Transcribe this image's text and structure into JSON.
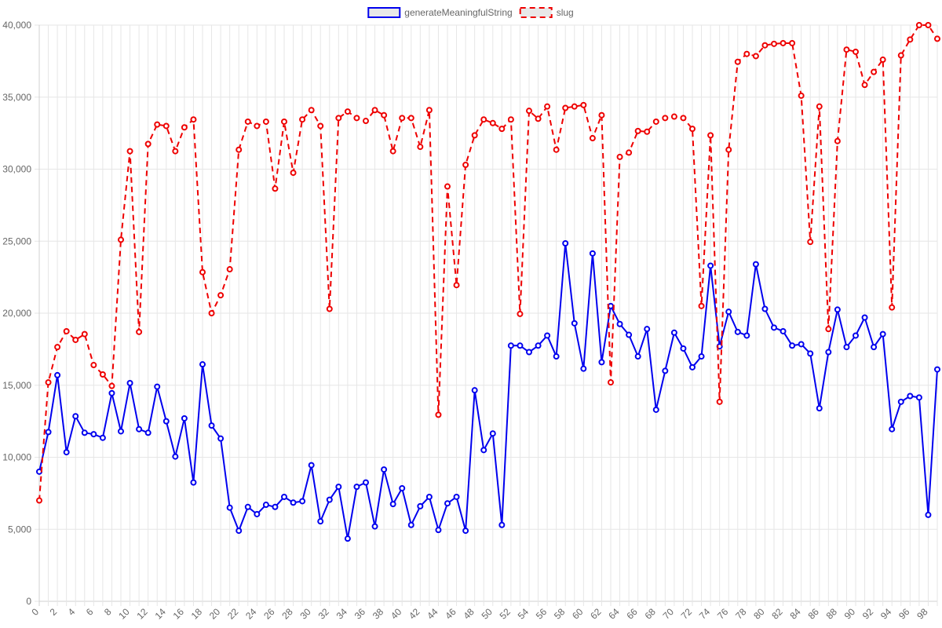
{
  "chart_data": {
    "type": "line",
    "title": "",
    "xlabel": "",
    "ylabel": "",
    "ylim": [
      0,
      40000
    ],
    "y_tick_labels": [
      "0",
      "5,000",
      "10,000",
      "15,000",
      "20,000",
      "25,000",
      "30,000",
      "35,000",
      "40,000"
    ],
    "y_ticks": [
      0,
      5000,
      10000,
      15000,
      20000,
      25000,
      30000,
      35000,
      40000
    ],
    "x": [
      0,
      1,
      2,
      3,
      4,
      5,
      6,
      7,
      8,
      9,
      10,
      11,
      12,
      13,
      14,
      15,
      16,
      17,
      18,
      19,
      20,
      21,
      22,
      23,
      24,
      25,
      26,
      27,
      28,
      29,
      30,
      31,
      32,
      33,
      34,
      35,
      36,
      37,
      38,
      39,
      40,
      41,
      42,
      43,
      44,
      45,
      46,
      47,
      48,
      49,
      50,
      51,
      52,
      53,
      54,
      55,
      56,
      57,
      58,
      59,
      60,
      61,
      62,
      63,
      64,
      65,
      66,
      67,
      68,
      69,
      70,
      71,
      72,
      73,
      74,
      75,
      76,
      77,
      78,
      79,
      80,
      81,
      82,
      83,
      84,
      85,
      86,
      87,
      88,
      89,
      90,
      91,
      92,
      93,
      94,
      95,
      96,
      97,
      98,
      99
    ],
    "x_tick_labels": [
      "0",
      "2",
      "4",
      "6",
      "8",
      "10",
      "12",
      "14",
      "16",
      "18",
      "20",
      "22",
      "24",
      "26",
      "28",
      "30",
      "32",
      "34",
      "36",
      "38",
      "40",
      "42",
      "44",
      "46",
      "48",
      "50",
      "52",
      "54",
      "56",
      "58",
      "60",
      "62",
      "64",
      "66",
      "68",
      "70",
      "72",
      "74",
      "76",
      "78",
      "80",
      "82",
      "84",
      "86",
      "88",
      "90",
      "92",
      "94",
      "96",
      "98"
    ],
    "grid": true,
    "legend_position": "top-center",
    "series": [
      {
        "name": "generateMeaningfulString",
        "color": "#0000ee",
        "line_style": "solid",
        "values": [
          9000,
          11750,
          15700,
          10350,
          12850,
          11700,
          11600,
          11350,
          14450,
          11800,
          15150,
          11950,
          11700,
          14900,
          12500,
          10050,
          12700,
          8250,
          16450,
          12200,
          11300,
          6500,
          4900,
          6550,
          6050,
          6700,
          6550,
          7250,
          6850,
          6950,
          9450,
          5550,
          7050,
          7950,
          4350,
          7950,
          8250,
          5200,
          9150,
          6750,
          7850,
          5300,
          6600,
          7250,
          4950,
          6800,
          7250,
          4900,
          14650,
          10500,
          11650,
          5300,
          17750,
          17750,
          17300,
          17750,
          18450,
          17000,
          24850,
          19300,
          16150,
          24150,
          16600,
          20500,
          19250,
          18500,
          17000,
          18900,
          13300,
          16000,
          18650,
          17550,
          16250,
          17000,
          23300,
          17700,
          20100,
          18700,
          18450,
          23400,
          20300,
          19000,
          18750,
          17750,
          17850,
          17200,
          13400,
          17300,
          20250,
          17650,
          18450,
          19700,
          17650,
          18550,
          11950,
          13850,
          14250,
          14150,
          6000,
          16100
        ]
      },
      {
        "name": "slug",
        "color": "#ee0000",
        "line_style": "dashed",
        "values": [
          7000,
          15200,
          17650,
          18750,
          18150,
          18550,
          16400,
          15750,
          14950,
          25100,
          31250,
          18700,
          31750,
          33100,
          33000,
          31250,
          32900,
          33450,
          22850,
          20000,
          21250,
          23050,
          31350,
          33300,
          33000,
          33300,
          28650,
          33300,
          29750,
          33450,
          34100,
          33000,
          20300,
          33550,
          34000,
          33550,
          33350,
          34100,
          33750,
          31250,
          33550,
          33550,
          31550,
          34100,
          12950,
          28800,
          21950,
          30300,
          32350,
          33450,
          33200,
          32800,
          33450,
          19950,
          34050,
          33500,
          34350,
          31350,
          34250,
          34350,
          34450,
          32150,
          33750,
          15200,
          30850,
          31150,
          32650,
          32600,
          33300,
          33550,
          33650,
          33550,
          32800,
          20500,
          32350,
          13850,
          31350,
          37450,
          38000,
          37850,
          38600,
          38700,
          38750,
          38750,
          35100,
          24950,
          34350,
          18900,
          31950,
          38300,
          38150,
          35850,
          36750,
          37600,
          20400,
          37900,
          39000,
          40000,
          40000,
          39050
        ]
      }
    ]
  }
}
